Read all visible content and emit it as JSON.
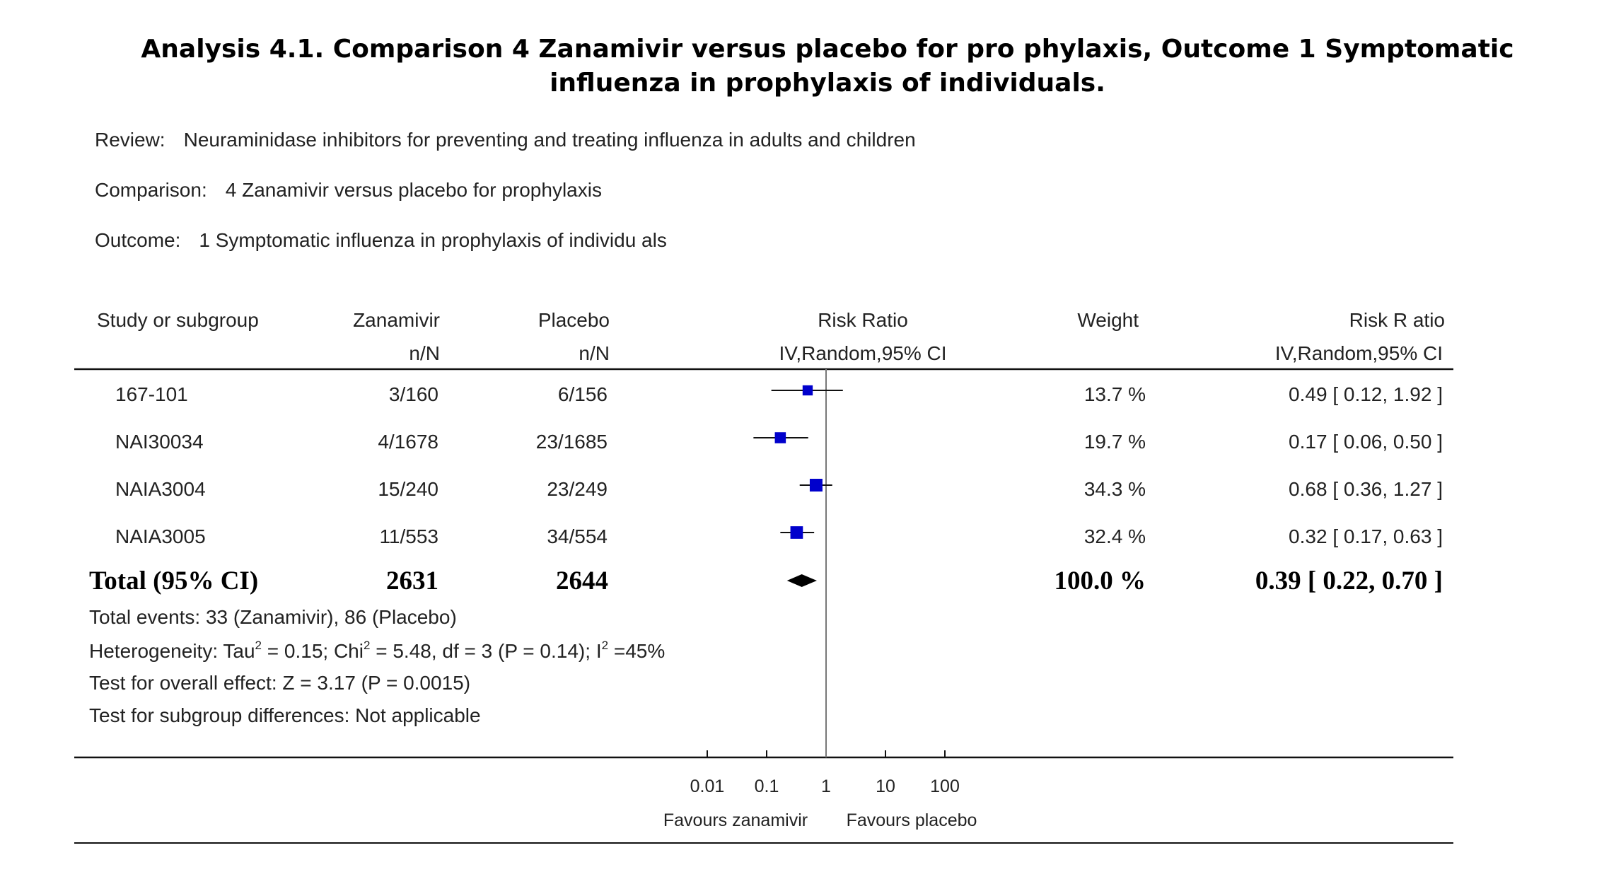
{
  "title": "Analysis 4.1.   Comparison 4 Zanamivir versus placebo for pro phylaxis, Outcome 1 Symptomatic influenza in prophylaxis of individuals.",
  "review": {
    "label": "Review:",
    "value": "Neuraminidase inhibitors for preventing and treating influenza in adults and children"
  },
  "comparison": {
    "label": "Comparison:",
    "value": "4 Zanamivir versus placebo for prophylaxis"
  },
  "outcome": {
    "label": "Outcome:",
    "value": "1 Symptomatic influenza in prophylaxis of individu als"
  },
  "headers": {
    "study": "Study or subgroup",
    "group1": "Zanamivir",
    "group1_sub": "n/N",
    "group2": "Placebo",
    "group2_sub": "n/N",
    "plot": "Risk Ratio",
    "plot_sub": "IV,Random,95% CI",
    "weight": "Weight",
    "ci": "Risk R  atio",
    "ci_sub": "IV,Random,95% CI"
  },
  "studies": [
    {
      "name": "167-101",
      "g1": "3/160",
      "g2": "6/156",
      "weight": "13.7 %",
      "ci_text": "0.49 [ 0.12, 1.92 ]"
    },
    {
      "name": "NAI30034",
      "g1": "4/1678",
      "g2": "23/1685",
      "weight": "19.7 %",
      "ci_text": "0.17 [ 0.06, 0.50 ]"
    },
    {
      "name": "NAIA3004",
      "g1": "15/240",
      "g2": "23/249",
      "weight": "34.3 %",
      "ci_text": "0.68 [ 0.36, 1.27 ]"
    },
    {
      "name": "NAIA3005",
      "g1": "11/553",
      "g2": "34/554",
      "weight": "32.4 %",
      "ci_text": "0.32 [ 0.17, 0.63 ]"
    }
  ],
  "total": {
    "name": "Total (95% CI)",
    "g1": "2631",
    "g2": "2644",
    "weight": "100.0 %",
    "ci_text": "0.39 [ 0.22, 0.70 ]"
  },
  "footer": {
    "events": "Total events: 33 (Zanamivir), 86 (Placebo)",
    "heterogeneity_a": "Heterogeneity: Tau",
    "heterogeneity_sup1": "2",
    "heterogeneity_b": " = 0.15; Chi",
    "heterogeneity_sup2": "2",
    "heterogeneity_c": " = 5.48, df = 3 (P = 0.14); I",
    "heterogeneity_sup3": "2",
    "heterogeneity_d": " =45%",
    "overall": "Test for overall effect: Z = 3.17 (P = 0.0015)",
    "subgroup": "Test for subgroup differences: Not applicable"
  },
  "chart_data": {
    "type": "scatter",
    "scale": "log",
    "x_ticks": [
      0.01,
      0.1,
      1,
      10,
      100
    ],
    "x_tick_labels": [
      "0.01",
      "0.1",
      "1",
      "10",
      "100"
    ],
    "xlim": [
      0.01,
      100
    ],
    "null_line": 1,
    "favours_left": "Favours zanamivir",
    "favours_right": "Favours placebo",
    "points": [
      {
        "name": "167-101",
        "rr": 0.49,
        "lo": 0.12,
        "hi": 1.92,
        "weight": 13.7
      },
      {
        "name": "NAI30034",
        "rr": 0.17,
        "lo": 0.06,
        "hi": 0.5,
        "weight": 19.7
      },
      {
        "name": "NAIA3004",
        "rr": 0.68,
        "lo": 0.36,
        "hi": 1.27,
        "weight": 34.3
      },
      {
        "name": "NAIA3005",
        "rr": 0.32,
        "lo": 0.17,
        "hi": 0.63,
        "weight": 32.4
      }
    ],
    "pooled": {
      "rr": 0.39,
      "lo": 0.22,
      "hi": 0.7
    },
    "colors": {
      "marker": "#0000cc",
      "line": "#111111",
      "diamond": "#000000",
      "null_line": "#777777"
    }
  }
}
